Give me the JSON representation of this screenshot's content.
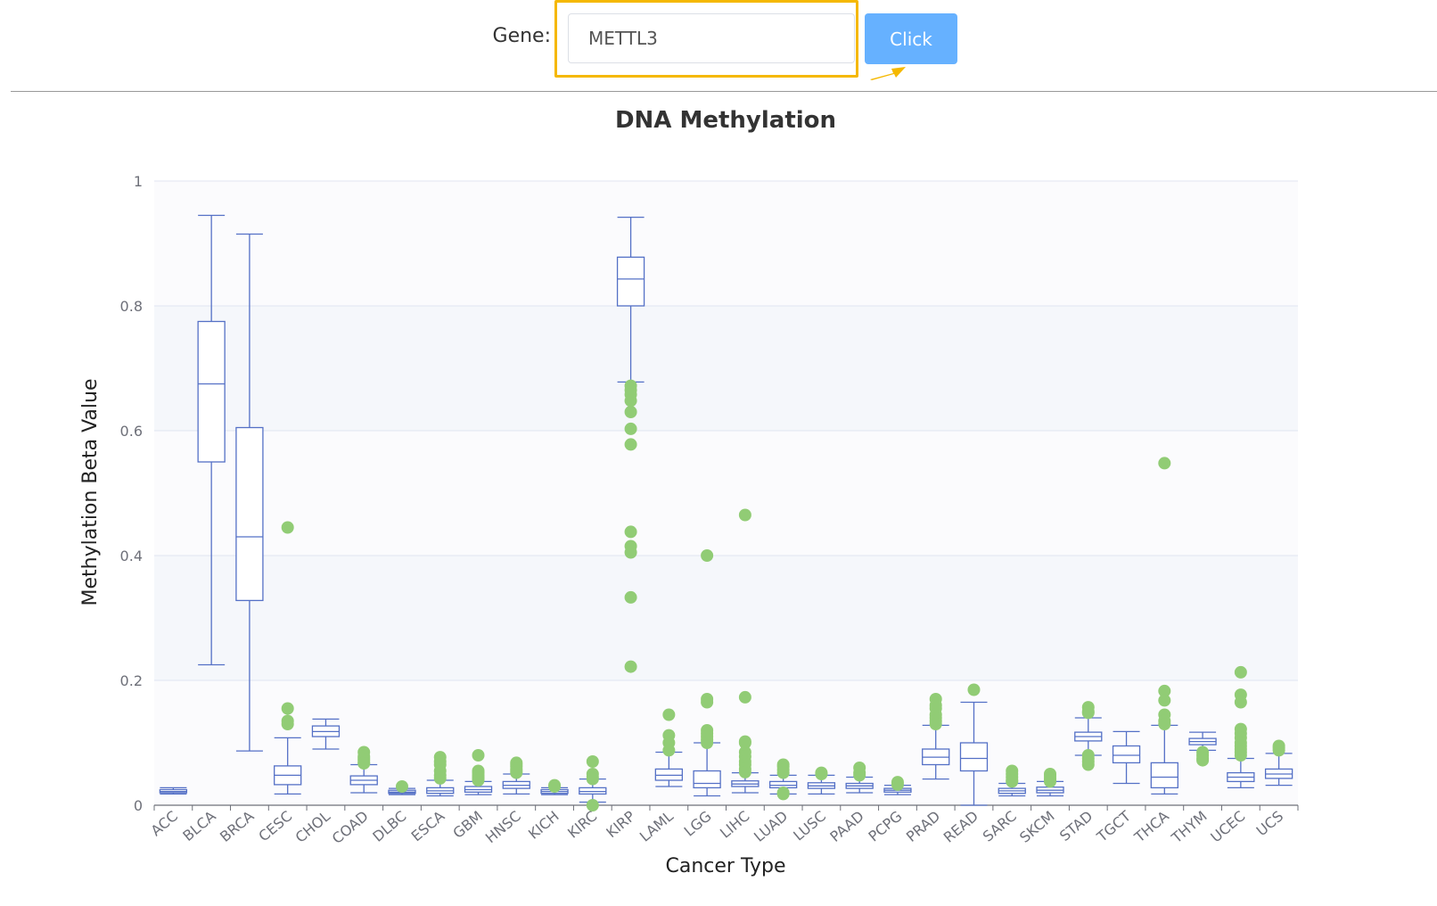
{
  "form": {
    "label": "Gene:",
    "input_value": "METTL3",
    "button_label": "Click"
  },
  "colors": {
    "highlight": "#f5b800",
    "button": "#66b1ff",
    "box_stroke": "#5470c6",
    "outlier": "#91cc75",
    "band": "#f5f7fb"
  },
  "chart_data": {
    "type": "boxplot",
    "title": "DNA Methylation",
    "xlabel": "Cancer Type",
    "ylabel": "Methylation Beta Value",
    "ylim": [
      0,
      1
    ],
    "yticks": [
      0,
      0.2,
      0.4,
      0.6,
      0.8,
      1
    ],
    "ytick_labels": [
      "0",
      "0.2",
      "0.4",
      "0.6",
      "0.8",
      "1"
    ],
    "grid": true,
    "categories": [
      "ACC",
      "BLCA",
      "BRCA",
      "CESC",
      "CHOL",
      "COAD",
      "DLBC",
      "ESCA",
      "GBM",
      "HNSC",
      "KICH",
      "KIRC",
      "KIRP",
      "LAML",
      "LGG",
      "LIHC",
      "LUAD",
      "LUSC",
      "PAAD",
      "PCPG",
      "PRAD",
      "READ",
      "SARC",
      "SKCM",
      "STAD",
      "TGCT",
      "THCA",
      "THYM",
      "UCEC",
      "UCS"
    ],
    "boxes": [
      {
        "min": 0.018,
        "q1": 0.02,
        "median": 0.022,
        "q3": 0.025,
        "max": 0.028
      },
      {
        "min": 0.225,
        "q1": 0.55,
        "median": 0.675,
        "q3": 0.775,
        "max": 0.945
      },
      {
        "min": 0.087,
        "q1": 0.328,
        "median": 0.43,
        "q3": 0.605,
        "max": 0.915
      },
      {
        "min": 0.018,
        "q1": 0.033,
        "median": 0.048,
        "q3": 0.063,
        "max": 0.108
      },
      {
        "min": 0.09,
        "q1": 0.11,
        "median": 0.118,
        "q3": 0.127,
        "max": 0.138
      },
      {
        "min": 0.02,
        "q1": 0.033,
        "median": 0.04,
        "q3": 0.047,
        "max": 0.065
      },
      {
        "min": 0.017,
        "q1": 0.019,
        "median": 0.021,
        "q3": 0.024,
        "max": 0.027
      },
      {
        "min": 0.015,
        "q1": 0.019,
        "median": 0.023,
        "q3": 0.028,
        "max": 0.04
      },
      {
        "min": 0.017,
        "q1": 0.021,
        "median": 0.025,
        "q3": 0.03,
        "max": 0.038
      },
      {
        "min": 0.018,
        "q1": 0.027,
        "median": 0.032,
        "q3": 0.038,
        "max": 0.05
      },
      {
        "min": 0.017,
        "q1": 0.019,
        "median": 0.022,
        "q3": 0.025,
        "max": 0.028
      },
      {
        "min": 0.005,
        "q1": 0.018,
        "median": 0.022,
        "q3": 0.028,
        "max": 0.042
      },
      {
        "min": 0.678,
        "q1": 0.8,
        "median": 0.843,
        "q3": 0.878,
        "max": 0.942
      },
      {
        "min": 0.03,
        "q1": 0.04,
        "median": 0.048,
        "q3": 0.058,
        "max": 0.085
      },
      {
        "min": 0.015,
        "q1": 0.028,
        "median": 0.035,
        "q3": 0.055,
        "max": 0.1
      },
      {
        "min": 0.02,
        "q1": 0.03,
        "median": 0.034,
        "q3": 0.039,
        "max": 0.052
      },
      {
        "min": 0.018,
        "q1": 0.028,
        "median": 0.032,
        "q3": 0.038,
        "max": 0.048
      },
      {
        "min": 0.018,
        "q1": 0.027,
        "median": 0.031,
        "q3": 0.036,
        "max": 0.048
      },
      {
        "min": 0.02,
        "q1": 0.027,
        "median": 0.031,
        "q3": 0.035,
        "max": 0.045
      },
      {
        "min": 0.017,
        "q1": 0.021,
        "median": 0.024,
        "q3": 0.027,
        "max": 0.032
      },
      {
        "min": 0.042,
        "q1": 0.065,
        "median": 0.077,
        "q3": 0.09,
        "max": 0.128
      },
      {
        "min": 0.0,
        "q1": 0.055,
        "median": 0.075,
        "q3": 0.1,
        "max": 0.165
      },
      {
        "min": 0.015,
        "q1": 0.019,
        "median": 0.023,
        "q3": 0.027,
        "max": 0.035
      },
      {
        "min": 0.015,
        "q1": 0.02,
        "median": 0.024,
        "q3": 0.029,
        "max": 0.038
      },
      {
        "min": 0.08,
        "q1": 0.103,
        "median": 0.11,
        "q3": 0.117,
        "max": 0.14
      },
      {
        "min": 0.035,
        "q1": 0.068,
        "median": 0.08,
        "q3": 0.095,
        "max": 0.118
      },
      {
        "min": 0.018,
        "q1": 0.028,
        "median": 0.045,
        "q3": 0.068,
        "max": 0.128
      },
      {
        "min": 0.088,
        "q1": 0.097,
        "median": 0.102,
        "q3": 0.107,
        "max": 0.117
      },
      {
        "min": 0.028,
        "q1": 0.038,
        "median": 0.045,
        "q3": 0.052,
        "max": 0.075
      },
      {
        "min": 0.032,
        "q1": 0.043,
        "median": 0.05,
        "q3": 0.058,
        "max": 0.083
      }
    ],
    "outliers": [
      [],
      [],
      [],
      [
        0.445,
        0.155,
        0.135,
        0.13
      ],
      [],
      [
        0.085,
        0.078,
        0.075,
        0.072,
        0.068,
        0.067
      ],
      [
        0.03
      ],
      [
        0.077,
        0.07,
        0.065,
        0.055,
        0.048,
        0.043
      ],
      [
        0.08,
        0.055,
        0.052,
        0.048,
        0.045,
        0.043,
        0.04
      ],
      [
        0.068,
        0.065,
        0.062,
        0.058,
        0.055,
        0.052
      ],
      [
        0.03,
        0.032
      ],
      [
        0.07,
        0.05,
        0.045,
        0.042,
        0.0
      ],
      [
        0.672,
        0.665,
        0.658,
        0.648,
        0.63,
        0.603,
        0.578,
        0.438,
        0.415,
        0.405,
        0.333,
        0.222
      ],
      [
        0.145,
        0.112,
        0.1,
        0.088
      ],
      [
        0.4,
        0.17,
        0.165,
        0.12,
        0.115,
        0.11,
        0.105,
        0.1
      ],
      [
        0.465,
        0.173,
        0.102,
        0.1,
        0.085,
        0.078,
        0.07,
        0.065,
        0.058,
        0.053
      ],
      [
        0.065,
        0.062,
        0.057,
        0.052,
        0.02,
        0.018
      ],
      [
        0.052,
        0.05
      ],
      [
        0.06,
        0.052,
        0.048
      ],
      [
        0.037,
        0.033
      ],
      [
        0.17,
        0.16,
        0.155,
        0.145,
        0.14,
        0.135,
        0.13
      ],
      [
        0.185
      ],
      [
        0.055,
        0.05,
        0.045,
        0.04,
        0.038
      ],
      [
        0.05,
        0.047,
        0.043,
        0.04,
        0.038
      ],
      [
        0.157,
        0.15,
        0.148,
        0.08,
        0.075,
        0.07,
        0.065
      ],
      [],
      [
        0.548,
        0.183,
        0.168,
        0.145,
        0.135,
        0.13
      ],
      [
        0.085,
        0.08,
        0.075,
        0.072
      ],
      [
        0.213,
        0.177,
        0.165,
        0.122,
        0.115,
        0.108,
        0.1,
        0.095,
        0.09,
        0.085,
        0.08
      ],
      [
        0.095,
        0.092,
        0.088
      ]
    ]
  }
}
